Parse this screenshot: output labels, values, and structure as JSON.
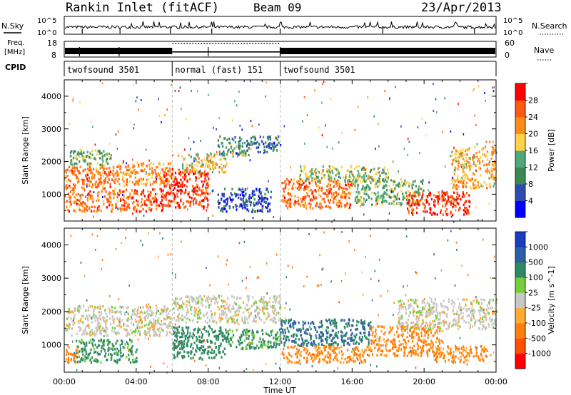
{
  "header": {
    "title": "Rankin Inlet (fitACF)",
    "beam": "Beam 09",
    "date": "23/Apr/2013"
  },
  "top_panels": {
    "nsky_label": "N.Sky",
    "nsky_ticks": [
      "10^5",
      "10^0"
    ],
    "nsearch_label": "N.Search",
    "nsearch_ticks": [
      "10^5",
      "10^0"
    ],
    "freq_label": "Freq.",
    "freq_unit": "[MHz]",
    "freq_ticks": [
      18,
      8
    ],
    "nave_label": "Nave",
    "nave_ticks": [
      60,
      0
    ],
    "cpid_label": "CPID",
    "cpid_segments": [
      {
        "label": "twofsound 3501",
        "start": 0,
        "end": 6
      },
      {
        "label": "normal (fast) 151",
        "start": 6,
        "end": 12
      },
      {
        "label": "twofsound 3501",
        "start": 12,
        "end": 24
      }
    ]
  },
  "colors": {
    "power_scale": [
      "#0000ff",
      "#2e4bb0",
      "#3a8a50",
      "#4fa77a",
      "#ffd24a",
      "#ff8c1a",
      "#ff5a10",
      "#ff0000"
    ],
    "velocity_scale": [
      "#1a3cbf",
      "#2f5ea8",
      "#2e8a62",
      "#76cf3a",
      "#c8c8c8",
      "#ffaa33",
      "#ff7f0e",
      "#ff5000",
      "#ff0000"
    ]
  },
  "chart_data": [
    {
      "type": "heatmap",
      "title": "",
      "xlabel": "Time UT",
      "ylabel": "Slant Range [km]",
      "xlim": [
        0,
        24
      ],
      "ylim": [
        180,
        4500
      ],
      "x_ticks": [
        "00:00",
        "04:00",
        "08:00",
        "12:00",
        "16:00",
        "20:00",
        "00:00"
      ],
      "y_ticks": [
        1000,
        2000,
        3000,
        4000
      ],
      "colorbar_label": "Power [dB]",
      "colorbar_ticks": [
        4,
        8,
        12,
        16,
        20,
        24,
        28
      ],
      "grid": false,
      "bands": [
        {
          "t0": 0.0,
          "t1": 3.0,
          "r0": 500,
          "r1": 1900,
          "power": 24
        },
        {
          "t0": 0.3,
          "t1": 2.6,
          "r0": 1900,
          "r1": 2400,
          "power": 14
        },
        {
          "t0": 3.0,
          "t1": 6.0,
          "r0": 1300,
          "r1": 2000,
          "power": 22
        },
        {
          "t0": 3.0,
          "t1": 5.5,
          "r0": 500,
          "r1": 1200,
          "power": 26
        },
        {
          "t0": 5.5,
          "t1": 8.0,
          "r0": 600,
          "r1": 1800,
          "power": 28
        },
        {
          "t0": 6.5,
          "t1": 9.0,
          "r0": 1700,
          "r1": 2300,
          "power": 18
        },
        {
          "t0": 8.5,
          "t1": 10.5,
          "r0": 2200,
          "r1": 2800,
          "power": 12
        },
        {
          "t0": 10.5,
          "t1": 12.0,
          "r0": 2300,
          "r1": 2800,
          "power": 8
        },
        {
          "t0": 8.5,
          "t1": 11.5,
          "r0": 500,
          "r1": 1200,
          "power": 6
        },
        {
          "t0": 12.0,
          "t1": 16.0,
          "r0": 600,
          "r1": 1500,
          "power": 24
        },
        {
          "t0": 13.0,
          "t1": 18.0,
          "r0": 1400,
          "r1": 1900,
          "power": 16
        },
        {
          "t0": 16.0,
          "t1": 20.0,
          "r0": 700,
          "r1": 1500,
          "power": 14
        },
        {
          "t0": 19.0,
          "t1": 22.5,
          "r0": 400,
          "r1": 1100,
          "power": 28
        },
        {
          "t0": 21.5,
          "t1": 24.0,
          "r0": 1200,
          "r1": 2500,
          "power": 20
        }
      ]
    },
    {
      "type": "heatmap",
      "title": "",
      "xlabel": "Time UT",
      "ylabel": "Slant Range [km]",
      "xlim": [
        0,
        24
      ],
      "ylim": [
        180,
        4500
      ],
      "x_ticks": [
        "00:00",
        "04:00",
        "08:00",
        "12:00",
        "16:00",
        "20:00",
        "00:00"
      ],
      "y_ticks": [
        1000,
        2000,
        3000,
        4000
      ],
      "colorbar_label": "Velocity [m s^-1]",
      "colorbar_ticks": [
        1000,
        500,
        100,
        25,
        -25,
        -100,
        -500,
        -1000
      ],
      "grid": false,
      "bands": [
        {
          "t0": 0.0,
          "t1": 6.0,
          "r0": 1300,
          "r1": 2200,
          "velocity": 0
        },
        {
          "t0": 0.5,
          "t1": 4.0,
          "r0": 500,
          "r1": 1200,
          "velocity": 150
        },
        {
          "t0": 0.0,
          "t1": 0.8,
          "r0": 500,
          "r1": 1000,
          "velocity": -150
        },
        {
          "t0": 6.0,
          "t1": 12.0,
          "r0": 1700,
          "r1": 2500,
          "velocity": 0
        },
        {
          "t0": 6.0,
          "t1": 9.0,
          "r0": 600,
          "r1": 1600,
          "velocity": 300
        },
        {
          "t0": 9.0,
          "t1": 12.0,
          "r0": 900,
          "r1": 1500,
          "velocity": 150
        },
        {
          "t0": 12.0,
          "t1": 17.0,
          "r0": 1000,
          "r1": 1800,
          "velocity": 500
        },
        {
          "t0": 12.0,
          "t1": 17.0,
          "r0": 500,
          "r1": 1000,
          "velocity": -150
        },
        {
          "t0": 17.0,
          "t1": 21.0,
          "r0": 700,
          "r1": 1600,
          "velocity": -200
        },
        {
          "t0": 20.5,
          "t1": 23.5,
          "r0": 500,
          "r1": 1000,
          "velocity": -150
        },
        {
          "t0": 18.5,
          "t1": 24.0,
          "r0": 1500,
          "r1": 2400,
          "velocity": 0
        }
      ]
    }
  ]
}
